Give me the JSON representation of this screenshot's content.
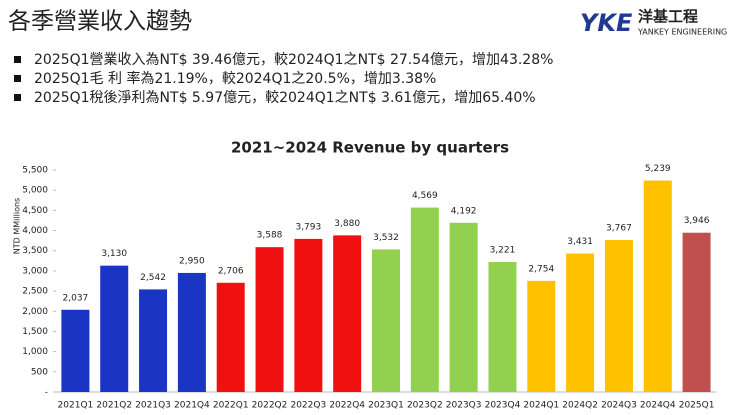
{
  "header": {
    "title": "各季營業收入趨勢",
    "logo_mark": "YKE",
    "logo_name": "洋基工程",
    "logo_sub": "YANKEY ENGINEERING"
  },
  "bullets": [
    "2025Q1營業收入為NT$ 39.46億元，較2024Q1之NT$ 27.54億元，增加43.28%",
    "2025Q1毛  利  率為21.19%，較2024Q1之20.5%，增加3.38%",
    "2025Q1稅後淨利為NT$ 5.97億元，較2024Q1之NT$ 3.61億元，增加65.40%"
  ],
  "chart_data": {
    "type": "bar",
    "title": "2021~2024 Revenue by quarters",
    "y_label": "NTD MMillions",
    "categories": [
      "2021Q1",
      "2021Q2",
      "2021Q3",
      "2021Q4",
      "2022Q1",
      "2022Q2",
      "2022Q3",
      "2022Q4",
      "2023Q1",
      "2023Q2",
      "2023Q3",
      "2023Q4",
      "2024Q1",
      "2024Q2",
      "2024Q3",
      "2024Q4",
      "2025Q1"
    ],
    "values": [
      2037,
      3130,
      2542,
      2950,
      2706,
      3588,
      3793,
      3880,
      3532,
      4569,
      4192,
      3221,
      2754,
      3431,
      3767,
      5239,
      3946
    ],
    "value_labels": [
      "2,037",
      "3,130",
      "2,542",
      "2,950",
      "2,706",
      "3,588",
      "3,793",
      "3,880",
      "3,532",
      "4,569",
      "4,192",
      "3,221",
      "2,754",
      "3,431",
      "3,767",
      "5,239",
      "3,946"
    ],
    "colors": [
      "#1a35c4",
      "#1a35c4",
      "#1a35c4",
      "#1a35c4",
      "#f01010",
      "#f01010",
      "#f01010",
      "#f01010",
      "#92d050",
      "#92d050",
      "#92d050",
      "#92d050",
      "#ffc000",
      "#ffc000",
      "#ffc000",
      "#ffc000",
      "#c0504d"
    ],
    "ylim": [
      0,
      5500
    ],
    "yticks": [
      {
        "value": 0,
        "label": "-"
      },
      500,
      {
        "value": 1000,
        "label": "1,000"
      },
      {
        "value": 1500,
        "label": "1,500"
      },
      {
        "value": 2000,
        "label": "2,000"
      },
      {
        "value": 2500,
        "label": "2,500"
      },
      {
        "value": 3000,
        "label": "3,000"
      },
      {
        "value": 3500,
        "label": "3,500"
      },
      {
        "value": 4000,
        "label": "4,000"
      },
      {
        "value": 4500,
        "label": "4,500"
      },
      {
        "value": 5000,
        "label": "5,000"
      },
      {
        "value": 5500,
        "label": "5,500"
      }
    ],
    "grid": false
  }
}
